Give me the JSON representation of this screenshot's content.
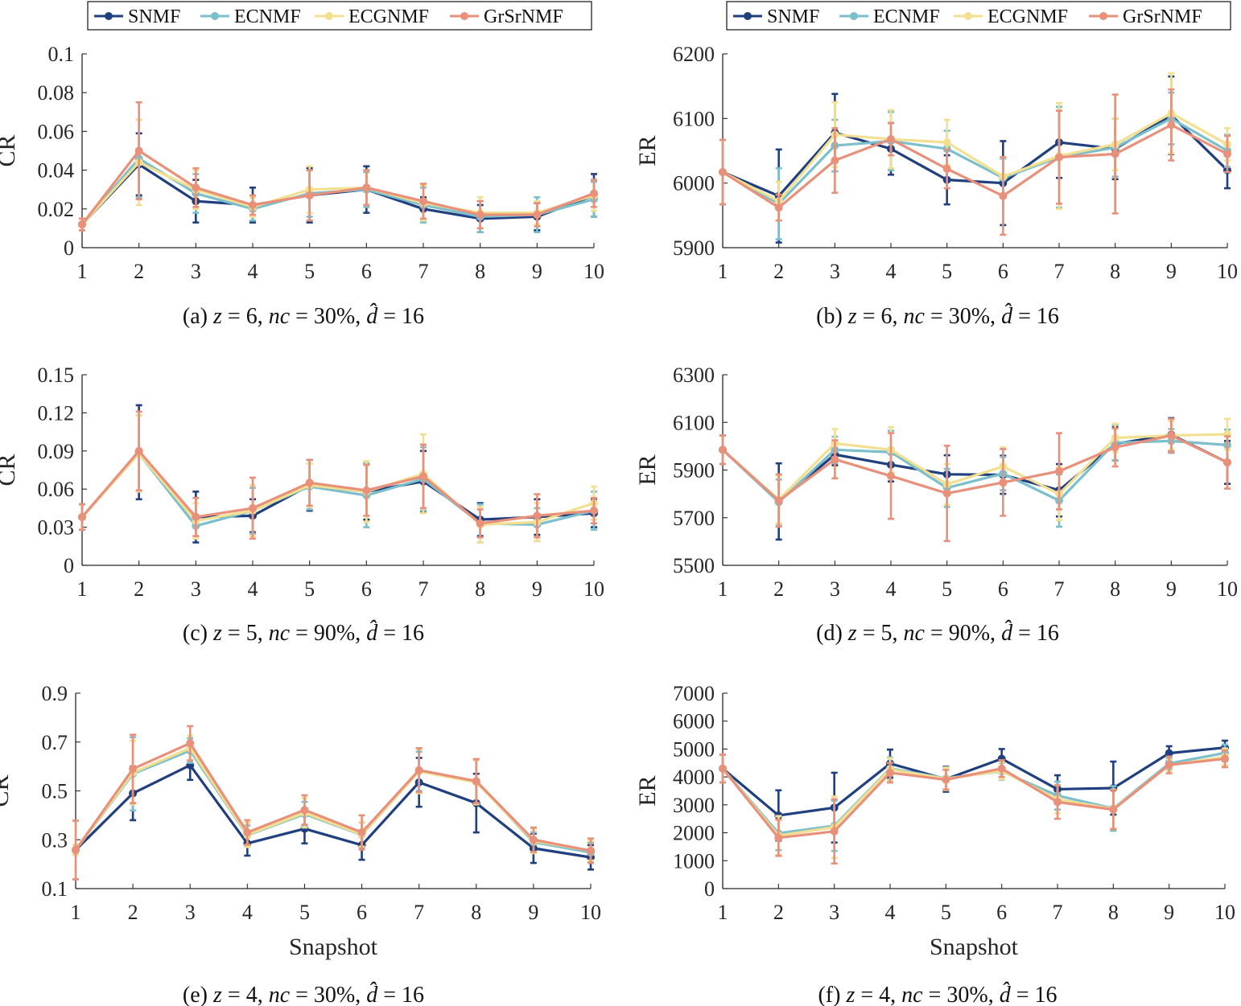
{
  "legend": {
    "entries": [
      {
        "name": "SNMF",
        "color": "#1f3f7f"
      },
      {
        "name": "ECNMF",
        "color": "#7bbfcc"
      },
      {
        "name": "ECGNMF",
        "color": "#f2e090"
      },
      {
        "name": "GrSrNMF",
        "color": "#e8907a"
      }
    ]
  },
  "chart_data": [
    {
      "id": "a",
      "type": "line",
      "caption": {
        "prefix": "(a)",
        "z": "6",
        "nc": "30%",
        "dhat": "16"
      },
      "xlabel": "",
      "ylabel": "CR",
      "x": [
        1,
        2,
        3,
        4,
        5,
        6,
        7,
        8,
        9,
        10
      ],
      "xticks": [
        "1",
        "2",
        "3",
        "4",
        "5",
        "6",
        "7",
        "8",
        "9",
        "10"
      ],
      "ylim": [
        0,
        0.1
      ],
      "yticks": [
        0,
        0.02,
        0.04,
        0.06,
        0.08,
        0.1
      ],
      "ytick_labels": [
        "0",
        "0.02",
        "0.04",
        "0.06",
        "0.08",
        "0.1"
      ],
      "series": [
        {
          "name": "SNMF",
          "color": "#1f3f7f",
          "values": [
            0.012,
            0.043,
            0.024,
            0.022,
            0.027,
            0.03,
            0.02,
            0.015,
            0.016,
            0.027
          ],
          "errors": [
            0.003,
            0.016,
            0.011,
            0.009,
            0.014,
            0.012,
            0.006,
            0.007,
            0.007,
            0.011
          ]
        },
        {
          "name": "ECNMF",
          "color": "#7bbfcc",
          "values": [
            0.012,
            0.046,
            0.028,
            0.02,
            0.028,
            0.03,
            0.022,
            0.016,
            0.017,
            0.025
          ],
          "errors": [
            0.003,
            0.02,
            0.01,
            0.006,
            0.012,
            0.009,
            0.009,
            0.008,
            0.009,
            0.009
          ]
        },
        {
          "name": "ECGNMF",
          "color": "#f2e090",
          "values": [
            0.012,
            0.044,
            0.03,
            0.021,
            0.03,
            0.031,
            0.023,
            0.018,
            0.018,
            0.027
          ],
          "errors": [
            0.003,
            0.022,
            0.01,
            0.005,
            0.012,
            0.009,
            0.009,
            0.008,
            0.006,
            0.008
          ]
        },
        {
          "name": "GrSrNMF",
          "color": "#e8907a",
          "values": [
            0.012,
            0.05,
            0.031,
            0.022,
            0.027,
            0.031,
            0.024,
            0.017,
            0.017,
            0.028
          ],
          "errors": [
            0.003,
            0.025,
            0.01,
            0.005,
            0.013,
            0.009,
            0.009,
            0.007,
            0.006,
            0.007
          ]
        }
      ]
    },
    {
      "id": "b",
      "type": "line",
      "caption": {
        "prefix": "(b)",
        "z": "6",
        "nc": "30%",
        "dhat": "16"
      },
      "xlabel": "",
      "ylabel": "ER",
      "x": [
        1,
        2,
        3,
        4,
        5,
        6,
        7,
        8,
        9,
        10
      ],
      "xticks": [
        "1",
        "2",
        "3",
        "4",
        "5",
        "6",
        "7",
        "8",
        "9",
        "10"
      ],
      "ylim": [
        5900,
        6200
      ],
      "yticks": [
        5900,
        6000,
        6100,
        6200
      ],
      "ytick_labels": [
        "5900",
        "6000",
        "6100",
        "6200"
      ],
      "series": [
        {
          "name": "SNMF",
          "color": "#1f3f7f",
          "values": [
            6017,
            5980,
            6078,
            6053,
            6005,
            6000,
            6063,
            6053,
            6105,
            6020
          ],
          "errors": [
            50,
            72,
            60,
            40,
            38,
            65,
            55,
            47,
            60,
            28
          ]
        },
        {
          "name": "ECNMF",
          "color": "#7bbfcc",
          "values": [
            6017,
            5968,
            6058,
            6065,
            6053,
            6008,
            6040,
            6055,
            6100,
            6050
          ],
          "errors": [
            50,
            55,
            40,
            45,
            28,
            30,
            78,
            45,
            40,
            25
          ]
        },
        {
          "name": "ECGNMF",
          "color": "#f2e090",
          "values": [
            6017,
            5972,
            6075,
            6068,
            6063,
            6010,
            6042,
            6060,
            6108,
            6060
          ],
          "errors": [
            50,
            30,
            50,
            45,
            35,
            30,
            82,
            40,
            62,
            25
          ]
        },
        {
          "name": "GrSrNMF",
          "color": "#e8907a",
          "values": [
            6017,
            5962,
            6035,
            6068,
            6022,
            5980,
            6040,
            6045,
            6090,
            6045
          ],
          "errors": [
            50,
            20,
            50,
            25,
            30,
            60,
            72,
            92,
            55,
            28
          ]
        }
      ]
    },
    {
      "id": "c",
      "type": "line",
      "caption": {
        "prefix": "(c)",
        "z": "5",
        "nc": "90%",
        "dhat": "16"
      },
      "xlabel": "",
      "ylabel": "CR",
      "x": [
        1,
        2,
        3,
        4,
        5,
        6,
        7,
        8,
        9,
        10
      ],
      "xticks": [
        "1",
        "2",
        "3",
        "4",
        "5",
        "6",
        "7",
        "8",
        "9",
        "10"
      ],
      "ylim": [
        0,
        0.15
      ],
      "yticks": [
        0,
        0.03,
        0.06,
        0.09,
        0.12,
        0.15
      ],
      "ytick_labels": [
        "0",
        "0.03",
        "0.06",
        "0.09",
        "0.12",
        "0.15"
      ],
      "series": [
        {
          "name": "SNMF",
          "color": "#1f3f7f",
          "values": [
            0.038,
            0.089,
            0.038,
            0.039,
            0.063,
            0.058,
            0.066,
            0.036,
            0.038,
            0.041
          ],
          "errors": [
            0.01,
            0.037,
            0.02,
            0.013,
            0.02,
            0.022,
            0.024,
            0.013,
            0.014,
            0.011
          ]
        },
        {
          "name": "ECNMF",
          "color": "#7bbfcc",
          "values": [
            0.038,
            0.088,
            0.031,
            0.043,
            0.062,
            0.055,
            0.068,
            0.033,
            0.032,
            0.043
          ],
          "errors": [
            0.01,
            0.03,
            0.008,
            0.018,
            0.018,
            0.025,
            0.025,
            0.015,
            0.013,
            0.015
          ]
        },
        {
          "name": "ECGNMF",
          "color": "#f2e090",
          "values": [
            0.038,
            0.088,
            0.035,
            0.043,
            0.063,
            0.058,
            0.072,
            0.032,
            0.034,
            0.049
          ],
          "errors": [
            0.01,
            0.03,
            0.014,
            0.02,
            0.017,
            0.024,
            0.031,
            0.014,
            0.015,
            0.013
          ]
        },
        {
          "name": "GrSrNMF",
          "color": "#e8907a",
          "values": [
            0.038,
            0.09,
            0.038,
            0.045,
            0.065,
            0.059,
            0.07,
            0.033,
            0.039,
            0.043
          ],
          "errors": [
            0.01,
            0.031,
            0.015,
            0.024,
            0.018,
            0.02,
            0.025,
            0.011,
            0.017,
            0.01
          ]
        }
      ]
    },
    {
      "id": "d",
      "type": "line",
      "caption": {
        "prefix": "(d)",
        "z": "5",
        "nc": "90%",
        "dhat": "16"
      },
      "xlabel": "",
      "ylabel": "ER",
      "x": [
        1,
        2,
        3,
        4,
        5,
        6,
        7,
        8,
        9,
        10
      ],
      "xticks": [
        "1",
        "2",
        "3",
        "4",
        "5",
        "6",
        "7",
        "8",
        "9",
        "10"
      ],
      "ylim": [
        5500,
        6300
      ],
      "yticks": [
        5500,
        5700,
        5900,
        6100,
        6300
      ],
      "ytick_labels": [
        "5500",
        "5700",
        "5900",
        "6100",
        "6300"
      ],
      "series": [
        {
          "name": "SNMF",
          "color": "#1f3f7f",
          "values": [
            5985,
            5768,
            5965,
            5922,
            5882,
            5880,
            5815,
            6010,
            6048,
            5932
          ],
          "errors": [
            60,
            160,
            45,
            70,
            80,
            80,
            110,
            70,
            70,
            90
          ]
        },
        {
          "name": "ECNMF",
          "color": "#7bbfcc",
          "values": [
            5985,
            5765,
            5985,
            5975,
            5825,
            5885,
            5772,
            6015,
            6022,
            6005
          ],
          "errors": [
            60,
            95,
            55,
            90,
            80,
            70,
            110,
            75,
            50,
            65
          ]
        },
        {
          "name": "ECGNMF",
          "color": "#f2e090",
          "values": [
            5985,
            5775,
            6012,
            5985,
            5840,
            5915,
            5800,
            6035,
            6045,
            6050
          ],
          "errors": [
            60,
            100,
            60,
            95,
            85,
            80,
            110,
            60,
            60,
            65
          ]
        },
        {
          "name": "GrSrNMF",
          "color": "#e8907a",
          "values": [
            5985,
            5772,
            5945,
            5875,
            5802,
            5848,
            5895,
            5995,
            6045,
            5932
          ],
          "errors": [
            60,
            110,
            80,
            180,
            200,
            140,
            160,
            80,
            70,
            110
          ]
        }
      ]
    },
    {
      "id": "e",
      "type": "line",
      "caption": {
        "prefix": "(e)",
        "z": "4",
        "nc": "30%",
        "dhat": "16"
      },
      "xlabel": "Snapshot",
      "ylabel": "CR",
      "x": [
        1,
        2,
        3,
        4,
        5,
        6,
        7,
        8,
        9,
        10
      ],
      "xticks": [
        "1",
        "2",
        "3",
        "4",
        "5",
        "6",
        "7",
        "8",
        "9",
        "10"
      ],
      "ylim": [
        0.1,
        0.9
      ],
      "yticks": [
        0.1,
        0.3,
        0.5,
        0.7,
        0.9
      ],
      "ytick_labels": [
        "0.1",
        "0.3",
        "0.5",
        "0.7",
        "0.9"
      ],
      "series": [
        {
          "name": "SNMF",
          "color": "#1f3f7f",
          "values": [
            0.258,
            0.49,
            0.605,
            0.285,
            0.345,
            0.278,
            0.535,
            0.45,
            0.265,
            0.228
          ],
          "errors": [
            0.02,
            0.11,
            0.06,
            0.05,
            0.06,
            0.06,
            0.1,
            0.12,
            0.06,
            0.05
          ]
        },
        {
          "name": "ECNMF",
          "color": "#7bbfcc",
          "values": [
            0.258,
            0.57,
            0.665,
            0.318,
            0.405,
            0.32,
            0.58,
            0.54,
            0.29,
            0.248
          ],
          "errors": [
            0.02,
            0.15,
            0.05,
            0.04,
            0.05,
            0.05,
            0.08,
            0.09,
            0.04,
            0.04
          ]
        },
        {
          "name": "ECGNMF",
          "color": "#f2e090",
          "values": [
            0.258,
            0.575,
            0.675,
            0.32,
            0.41,
            0.322,
            0.58,
            0.535,
            0.295,
            0.255
          ],
          "errors": [
            0.02,
            0.13,
            0.05,
            0.05,
            0.06,
            0.05,
            0.09,
            0.09,
            0.05,
            0.04
          ]
        },
        {
          "name": "GrSrNMF",
          "color": "#e8907a",
          "values": [
            0.258,
            0.59,
            0.695,
            0.33,
            0.422,
            0.33,
            0.585,
            0.54,
            0.3,
            0.255
          ],
          "errors": [
            0.12,
            0.14,
            0.07,
            0.05,
            0.06,
            0.07,
            0.09,
            0.09,
            0.05,
            0.05
          ]
        }
      ]
    },
    {
      "id": "f",
      "type": "line",
      "caption": {
        "prefix": "(f)",
        "z": "4",
        "nc": "30%",
        "dhat": "16"
      },
      "xlabel": "Snapshot",
      "ylabel": "ER",
      "x": [
        1,
        2,
        3,
        4,
        5,
        6,
        7,
        8,
        9,
        10
      ],
      "xticks": [
        "1",
        "2",
        "3",
        "4",
        "5",
        "6",
        "7",
        "8",
        "9",
        "10"
      ],
      "ylim": [
        0,
        7000
      ],
      "yticks": [
        0,
        1000,
        2000,
        3000,
        4000,
        5000,
        6000,
        7000
      ],
      "ytick_labels": [
        "0",
        "1000",
        "2000",
        "3000",
        "4000",
        "5000",
        "6000",
        "7000"
      ],
      "series": [
        {
          "name": "SNMF",
          "color": "#1f3f7f",
          "values": [
            4300,
            2620,
            2900,
            4480,
            3920,
            4650,
            3560,
            3600,
            4850,
            5050
          ],
          "errors": [
            500,
            900,
            1250,
            500,
            450,
            350,
            500,
            950,
            250,
            250
          ]
        },
        {
          "name": "ECNMF",
          "color": "#7bbfcc",
          "values": [
            4300,
            1980,
            2250,
            4300,
            3950,
            4200,
            3330,
            2870,
            4480,
            4860
          ],
          "errors": [
            500,
            600,
            900,
            400,
            400,
            300,
            500,
            800,
            200,
            300
          ]
        },
        {
          "name": "ECGNMF",
          "color": "#f2e090",
          "values": [
            4300,
            1900,
            2200,
            4270,
            3930,
            4220,
            3200,
            2850,
            4420,
            4720
          ],
          "errors": [
            500,
            700,
            1100,
            400,
            400,
            300,
            500,
            700,
            200,
            300
          ]
        },
        {
          "name": "GrSrNMF",
          "color": "#e8907a",
          "values": [
            4300,
            1820,
            2050,
            4150,
            3900,
            4300,
            3100,
            2830,
            4430,
            4650
          ],
          "errors": [
            500,
            650,
            1150,
            350,
            350,
            300,
            600,
            700,
            300,
            300
          ]
        }
      ]
    }
  ]
}
